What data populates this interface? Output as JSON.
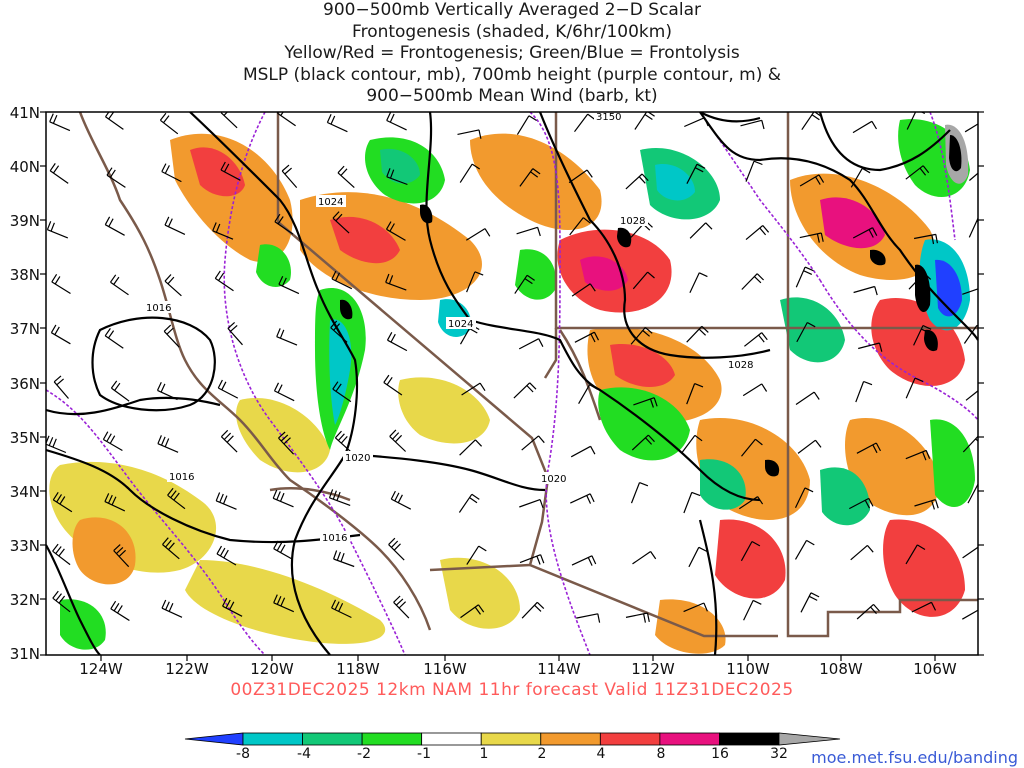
{
  "title_lines": [
    "900−500mb Vertically Averaged 2−D Scalar",
    "Frontogenesis (shaded, K/6hr/100km)",
    "Yellow/Red = Frontogenesis;  Green/Blue = Frontolysis",
    "MSLP (black contour, mb), 700mb height (purple contour, m) &",
    "900−500mb Mean Wind (barb, kt)"
  ],
  "lat_labels": [
    "41N",
    "40N",
    "39N",
    "38N",
    "37N",
    "36N",
    "35N",
    "34N",
    "33N",
    "32N",
    "31N"
  ],
  "lon_labels": [
    "124W",
    "122W",
    "120W",
    "118W",
    "116W",
    "114W",
    "112W",
    "110W",
    "108W",
    "106W"
  ],
  "valid_line": "00Z31DEC2025 12km NAM 11hr forecast Valid 11Z31DEC2025",
  "colorbar": {
    "labels": [
      "-8",
      "-4",
      "-2",
      "-1",
      "1",
      "2",
      "4",
      "8",
      "16",
      "32"
    ],
    "colors": [
      "#2040ff",
      "#00c7c7",
      "#12c877",
      "#22dd22",
      "#ffffff",
      "#e8d84a",
      "#f29a2e",
      "#f23f3f",
      "#e8117e",
      "#000000",
      "#a7a7a7"
    ]
  },
  "contour_labels": {
    "mslp": [
      "1024",
      "1028",
      "1016",
      "1024",
      "1028",
      "1016",
      "1020",
      "1020",
      "1016"
    ],
    "height": [
      "3150"
    ]
  },
  "credit": "moe.met.fsu.edu/banding"
}
